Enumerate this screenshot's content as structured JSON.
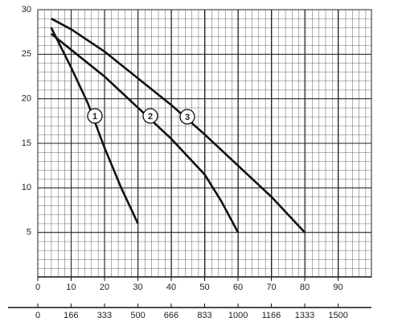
{
  "chart_data": {
    "type": "line",
    "xlim": [
      0,
      100
    ],
    "xticks": [
      0,
      10,
      20,
      30,
      40,
      50,
      60,
      70,
      80,
      90
    ],
    "x2lim": [
      0,
      1666
    ],
    "x2ticks": [
      0,
      166,
      333,
      500,
      666,
      833,
      1000,
      1166,
      1333,
      1500
    ],
    "ylim": [
      0,
      30
    ],
    "yticks": [
      5,
      10,
      15,
      20,
      25,
      30
    ],
    "grid": true,
    "series": [
      {
        "name": "1",
        "color": "#111111",
        "x": [
          4,
          10,
          15,
          20,
          25,
          30
        ],
        "values": [
          28,
          23.5,
          19.5,
          14.5,
          10,
          6
        ]
      },
      {
        "name": "2",
        "color": "#111111",
        "x": [
          4,
          10,
          20,
          30,
          40,
          50,
          55,
          60
        ],
        "values": [
          27.3,
          25.5,
          22.5,
          19,
          15.5,
          11.5,
          8.5,
          5
        ]
      },
      {
        "name": "3",
        "color": "#111111",
        "x": [
          4,
          10,
          20,
          30,
          40,
          50,
          60,
          70,
          80
        ],
        "values": [
          29,
          27.8,
          25.3,
          22.3,
          19.3,
          16,
          12.5,
          9,
          5
        ]
      }
    ]
  }
}
